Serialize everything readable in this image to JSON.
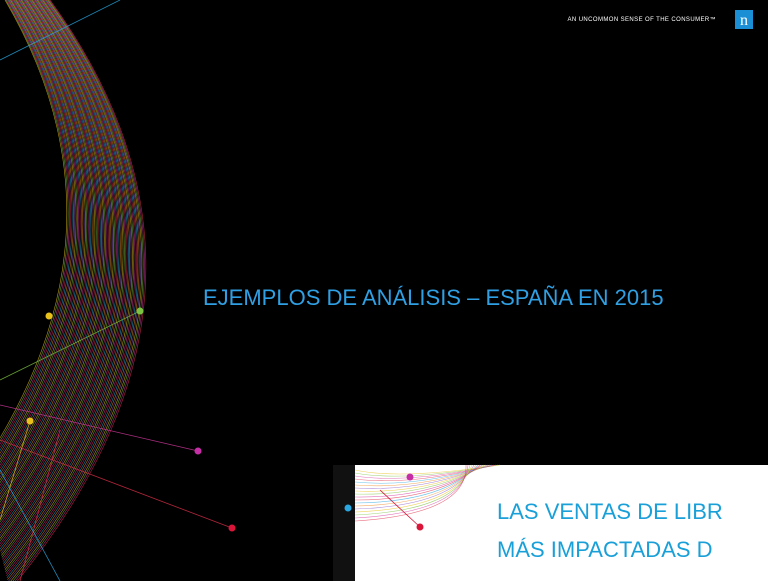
{
  "header": {
    "tagline": "AN UNCOMMON SENSE OF THE CONSUMER™",
    "logo": "n"
  },
  "slide": {
    "title": "EJEMPLOS DE ANÁLISIS – ESPAÑA EN 2015"
  },
  "next_slide": {
    "lines": [
      "LAS VENTAS DE LIBR",
      "MÁS IMPACTADAS D"
    ]
  }
}
